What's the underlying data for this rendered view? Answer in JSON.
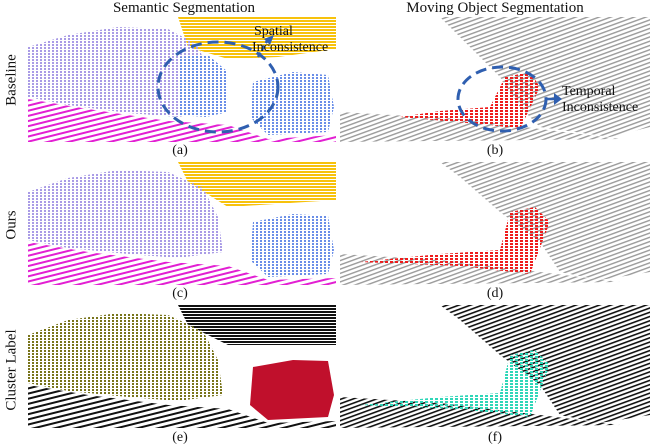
{
  "columns": {
    "left": "Semantic Segmentation",
    "right": "Moving Object Segmentation"
  },
  "rows": {
    "baseline": "Baseline",
    "ours": "Ours",
    "cluster": "Cluster Label"
  },
  "captions": {
    "a": "(a)",
    "b": "(b)",
    "c": "(c)",
    "d": "(d)",
    "e": "(e)",
    "f": "(f)"
  },
  "annotations": {
    "spatial_line1": "Spatial",
    "spatial_line2": "Inconsistence",
    "temporal_line1": "Temporal",
    "temporal_line2": "Inconsistence"
  },
  "colors": {
    "car_lavender": "#a99be6",
    "car_blue": "#6a8ee8",
    "ground_magenta": "#e21fd2",
    "vegetation_yellow": "#f7c20c",
    "scan_gray": "#9a9a9a",
    "moving_red": "#ee1c1c",
    "cluster_olive": "#78741a",
    "cluster_crimson": "#c0102c",
    "cluster_black": "#111111",
    "cluster_teal": "#2fd6b8",
    "annotation_blue": "#2f5fb0"
  }
}
